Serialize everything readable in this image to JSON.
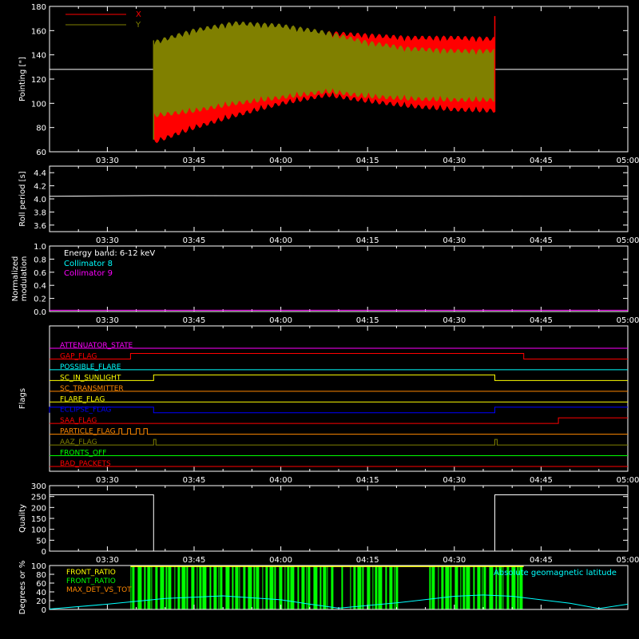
{
  "colors": {
    "background": "#000000",
    "axis": "#ffffff",
    "x_series": "#ff0000",
    "y_series": "#808000",
    "collimator8": "#00ffff",
    "collimator9": "#ff00ff",
    "front_ratio_1": "#ffff00",
    "front_ratio_2": "#00ff00",
    "max_det": "#ff8800",
    "geomag": "#00ffff"
  },
  "chart_data": [
    {
      "type": "area",
      "ylabel": "Pointing [\"]",
      "xlim": [
        "03:20",
        "05:00"
      ],
      "ylim": [
        60,
        180
      ],
      "yticks": [
        "60",
        "80",
        "100",
        "120",
        "140",
        "160",
        "180"
      ],
      "xtick_labels": [
        "03:30",
        "03:45",
        "04:00",
        "04:15",
        "04:30",
        "04:45",
        "05:00"
      ],
      "legend": [
        {
          "label": "X",
          "color": "#ff0000"
        },
        {
          "label": "Y",
          "color": "#808000"
        }
      ],
      "legend_position": "top-left",
      "reference_level": 128,
      "data_start": "03:38",
      "data_end": "04:37",
      "series": [
        {
          "name": "X",
          "x": [
            "03:38",
            "03:45",
            "03:52",
            "04:00",
            "04:08",
            "04:15",
            "04:22",
            "04:30",
            "04:37"
          ],
          "upper": [
            145,
            150,
            158,
            160,
            160,
            158,
            156,
            156,
            155
          ],
          "lower": [
            66,
            78,
            88,
            98,
            105,
            100,
            96,
            93,
            92
          ]
        },
        {
          "name": "Y",
          "x": [
            "03:38",
            "03:45",
            "03:52",
            "04:00",
            "04:08",
            "04:15",
            "04:22",
            "04:30",
            "04:37"
          ],
          "upper": [
            152,
            162,
            168,
            166,
            160,
            152,
            147,
            145,
            145
          ],
          "lower": [
            88,
            92,
            98,
            103,
            108,
            104,
            102,
            101,
            101
          ]
        }
      ]
    },
    {
      "type": "line",
      "ylabel": "Roll period [s]",
      "ylim": [
        3.5,
        4.5
      ],
      "yticks": [
        "3.6",
        "3.8",
        "4.0",
        "4.2",
        "4.4"
      ],
      "xtick_labels": [
        "03:30",
        "03:45",
        "04:00",
        "04:15",
        "04:30",
        "04:45",
        "05:00"
      ],
      "series": [
        {
          "x": [
            "03:20",
            "03:38",
            "05:00"
          ],
          "y": [
            4.04,
            4.05,
            4.04
          ]
        }
      ]
    },
    {
      "type": "line",
      "ylabel": "Normalized modulation",
      "ylim": [
        0,
        1.0
      ],
      "yticks": [
        "0.0",
        "0.2",
        "0.4",
        "0.6",
        "0.8",
        "1.0"
      ],
      "xtick_labels": [
        "03:30",
        "03:45",
        "04:00",
        "04:15",
        "04:30",
        "04:45",
        "05:00"
      ],
      "annotation": "Energy band: 6-12 keV",
      "legend": [
        {
          "label": "Collimator 8",
          "color": "#00ffff"
        },
        {
          "label": "Collimator 9",
          "color": "#ff00ff"
        }
      ],
      "series": [
        {
          "x": [
            "03:20",
            "05:00"
          ],
          "y": [
            0.02,
            0.02
          ],
          "color": "#ff00ff"
        }
      ]
    },
    {
      "type": "line",
      "ylabel": "Flags",
      "xtick_labels": [
        "03:30",
        "03:45",
        "04:00",
        "04:15",
        "04:30",
        "04:45",
        "05:00"
      ],
      "flags": [
        {
          "label": "ATTENUATOR_STATE",
          "color": "#ff00ff",
          "steps": []
        },
        {
          "label": "GAP_FLAG",
          "color": "#ff0000",
          "steps": [
            [
              "03:34",
              "04:42"
            ]
          ]
        },
        {
          "label": "POSSIBLE_FLARE",
          "color": "#00ffff",
          "steps": []
        },
        {
          "label": "SC_IN_SUNLIGHT",
          "color": "#ffff00",
          "steps": [
            [
              "03:38",
              "04:37"
            ]
          ]
        },
        {
          "label": "SC_TRANSMITTER",
          "color": "#ff8800",
          "steps": []
        },
        {
          "label": "FLARE_FLAG",
          "color": "#ffff00",
          "steps": []
        },
        {
          "label": "ECLIPSE_FLAG",
          "color": "#0000ff",
          "steps": [
            [
              "03:20",
              "03:38"
            ],
            [
              "04:37",
              "05:00"
            ]
          ]
        },
        {
          "label": "SAA_FLAG",
          "color": "#ff0000",
          "steps": [
            [
              "04:48",
              "05:00"
            ]
          ]
        },
        {
          "label": "PARTICLE_FLAG",
          "color": "#ff8800",
          "steps": [
            [
              "03:32",
              "03:32.5"
            ],
            [
              "03:33.5",
              "03:34"
            ],
            [
              "03:35",
              "03:35.6"
            ],
            [
              "03:36.3",
              "03:36.9"
            ]
          ]
        },
        {
          "label": "AAZ_FLAG",
          "color": "#808000",
          "steps": [
            [
              "03:38",
              "03:38.4"
            ],
            [
              "04:37",
              "04:37.4"
            ]
          ]
        },
        {
          "label": "FRONTS_OFF",
          "color": "#00ff00",
          "steps": []
        },
        {
          "label": "BAD_PACKETS",
          "color": "#ff0000",
          "steps": []
        }
      ]
    },
    {
      "type": "line",
      "ylabel": "Quality",
      "ylim": [
        0,
        300
      ],
      "yticks": [
        "0",
        "50",
        "100",
        "150",
        "200",
        "250",
        "300"
      ],
      "xtick_labels": [
        "03:30",
        "03:45",
        "04:00",
        "04:15",
        "04:30",
        "04:45",
        "05:00"
      ],
      "series": [
        {
          "x": [
            "03:20",
            "03:38",
            "03:38",
            "04:37",
            "04:37",
            "05:00"
          ],
          "y": [
            258,
            258,
            0,
            0,
            258,
            258
          ]
        }
      ]
    },
    {
      "type": "line",
      "ylabel": "Degrees or %",
      "ylim": [
        0,
        100
      ],
      "yticks": [
        "0",
        "20",
        "40",
        "60",
        "80",
        "100"
      ],
      "legend": [
        {
          "label": "FRONT_RATIO",
          "color": "#ffff00"
        },
        {
          "label": "FRONT_RATIO",
          "color": "#00ff00"
        },
        {
          "label": "MAX_DET_VS_TOT",
          "color": "#ff8800"
        }
      ],
      "annotation_right": "Absolute geomagnetic latitude",
      "bars_span": [
        "03:34",
        "04:42"
      ],
      "bars_level": 100,
      "geomag": {
        "x": [
          "03:20",
          "03:30",
          "03:40",
          "03:50",
          "04:00",
          "04:05",
          "04:10",
          "04:20",
          "04:30",
          "04:35",
          "04:40",
          "04:50",
          "04:55",
          "05:00"
        ],
        "y": [
          1,
          12,
          25,
          31,
          22,
          12,
          3,
          15,
          30,
          33,
          30,
          14,
          2,
          12
        ]
      }
    }
  ]
}
